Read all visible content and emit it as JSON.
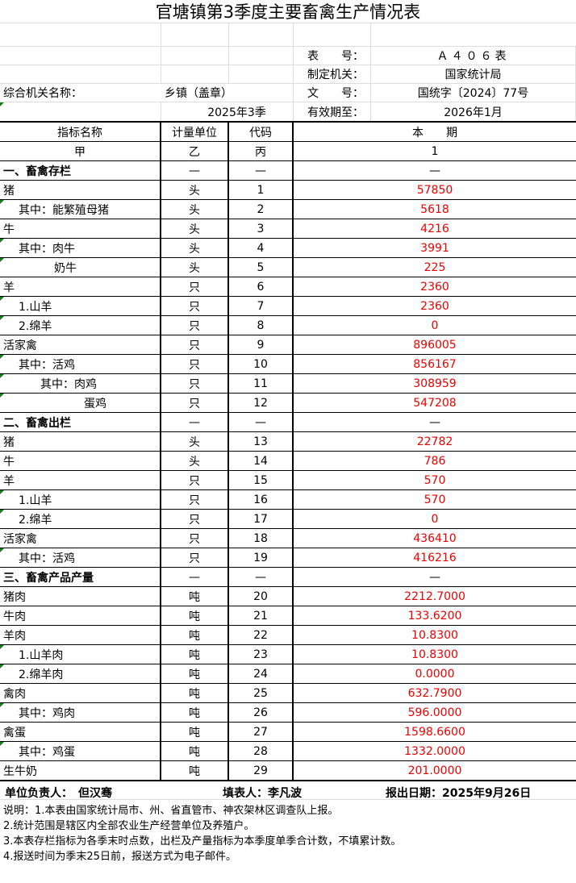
{
  "title": "官塘镇第3季度主要畜禽生产情况表",
  "meta": {
    "form_no_label": "表　　号：",
    "form_no": "Ａ４０６表",
    "issuer_label": "制定机关：",
    "issuer": "国家统计局",
    "doc_no_label": "文　　号：",
    "doc_no": "国统字〔2024〕77号",
    "agency_label": "综合机关名称：",
    "agency_value": "乡镇（盖章）",
    "period": "2025年3季",
    "valid_label": "有效期至：",
    "valid": "2026年1月"
  },
  "headers": [
    "指标名称",
    "计量单位",
    "代码",
    "本　　期"
  ],
  "subheaders": [
    "甲",
    "乙",
    "丙",
    "1"
  ],
  "rows": [
    {
      "name": "一、畜禽存栏",
      "unit": "—",
      "code": "—",
      "value": "—",
      "section": true
    },
    {
      "name": "猪",
      "unit": "头",
      "code": "1",
      "value": "57850"
    },
    {
      "name": "其中：能繁殖母猪",
      "unit": "头",
      "code": "2",
      "value": "5618"
    },
    {
      "name": "牛",
      "unit": "头",
      "code": "3",
      "value": "4216"
    },
    {
      "name": "其中：肉牛",
      "unit": "头",
      "code": "4",
      "value": "3991"
    },
    {
      "name": "奶牛",
      "unit": "头",
      "code": "5",
      "value": "225"
    },
    {
      "name": "羊",
      "unit": "只",
      "code": "6",
      "value": "2360"
    },
    {
      "name": "1.山羊",
      "unit": "只",
      "code": "7",
      "value": "2360"
    },
    {
      "name": "2.绵羊",
      "unit": "只",
      "code": "8",
      "value": "0"
    },
    {
      "name": "活家禽",
      "unit": "只",
      "code": "9",
      "value": "896005"
    },
    {
      "name": "其中：活鸡",
      "unit": "只",
      "code": "10",
      "value": "856167"
    },
    {
      "name": "其中：肉鸡",
      "unit": "只",
      "code": "11",
      "value": "308959"
    },
    {
      "name": "蛋鸡",
      "unit": "只",
      "code": "12",
      "value": "547208"
    },
    {
      "name": "二、畜禽出栏",
      "unit": "—",
      "code": "—",
      "value": "—",
      "section": true
    },
    {
      "name": "猪",
      "unit": "头",
      "code": "13",
      "value": "22782"
    },
    {
      "name": "牛",
      "unit": "头",
      "code": "14",
      "value": "786"
    },
    {
      "name": "羊",
      "unit": "只",
      "code": "15",
      "value": "570"
    },
    {
      "name": "1.山羊",
      "unit": "只",
      "code": "16",
      "value": "570"
    },
    {
      "name": "2.绵羊",
      "unit": "只",
      "code": "17",
      "value": "0"
    },
    {
      "name": "活家禽",
      "unit": "只",
      "code": "18",
      "value": "436410"
    },
    {
      "name": "其中：活鸡",
      "unit": "只",
      "code": "19",
      "value": "416216"
    },
    {
      "name": "三、畜禽产品产量",
      "unit": "—",
      "code": "—",
      "value": "—",
      "section": true
    },
    {
      "name": "猪肉",
      "unit": "吨",
      "code": "20",
      "value": "2212.7000"
    },
    {
      "name": "牛肉",
      "unit": "吨",
      "code": "21",
      "value": "133.6200"
    },
    {
      "name": "羊肉",
      "unit": "吨",
      "code": "22",
      "value": "10.8300"
    },
    {
      "name": "1.山羊肉",
      "unit": "吨",
      "code": "23",
      "value": "10.8300"
    },
    {
      "name": "2.绵羊肉",
      "unit": "吨",
      "code": "24",
      "value": "0.0000"
    },
    {
      "name": "禽肉",
      "unit": "吨",
      "code": "25",
      "value": "632.7900"
    },
    {
      "name": "其中：鸡肉",
      "unit": "吨",
      "code": "26",
      "value": "596.0000"
    },
    {
      "name": "禽蛋",
      "unit": "吨",
      "code": "27",
      "value": "1598.6600"
    },
    {
      "name": "其中：鸡蛋",
      "unit": "吨",
      "code": "28",
      "value": "1332.0000"
    },
    {
      "name": "生牛奶",
      "unit": "吨",
      "code": "29",
      "value": "201.0000"
    }
  ],
  "footer": {
    "head": "单位负责人：　但汉骞",
    "filler": "填表人：李凡波",
    "date": "报出日期：2025年9月26日"
  },
  "notes": [
    "说明：1.本表由国家统计局市、州、省直管市、神农架林区调查队上报。",
    "2.统计范围是辖区内全部农业生产经营单位及养殖户。",
    "3.本表存栏指标为各季末时点数，出栏及产量指标为本季度单季合计数，不填累计数。",
    "4.报送时间为季末25日前，报送方式为电子邮件。"
  ],
  "colors": {
    "value": "#ee0000",
    "flag": "#1a7a1a"
  }
}
